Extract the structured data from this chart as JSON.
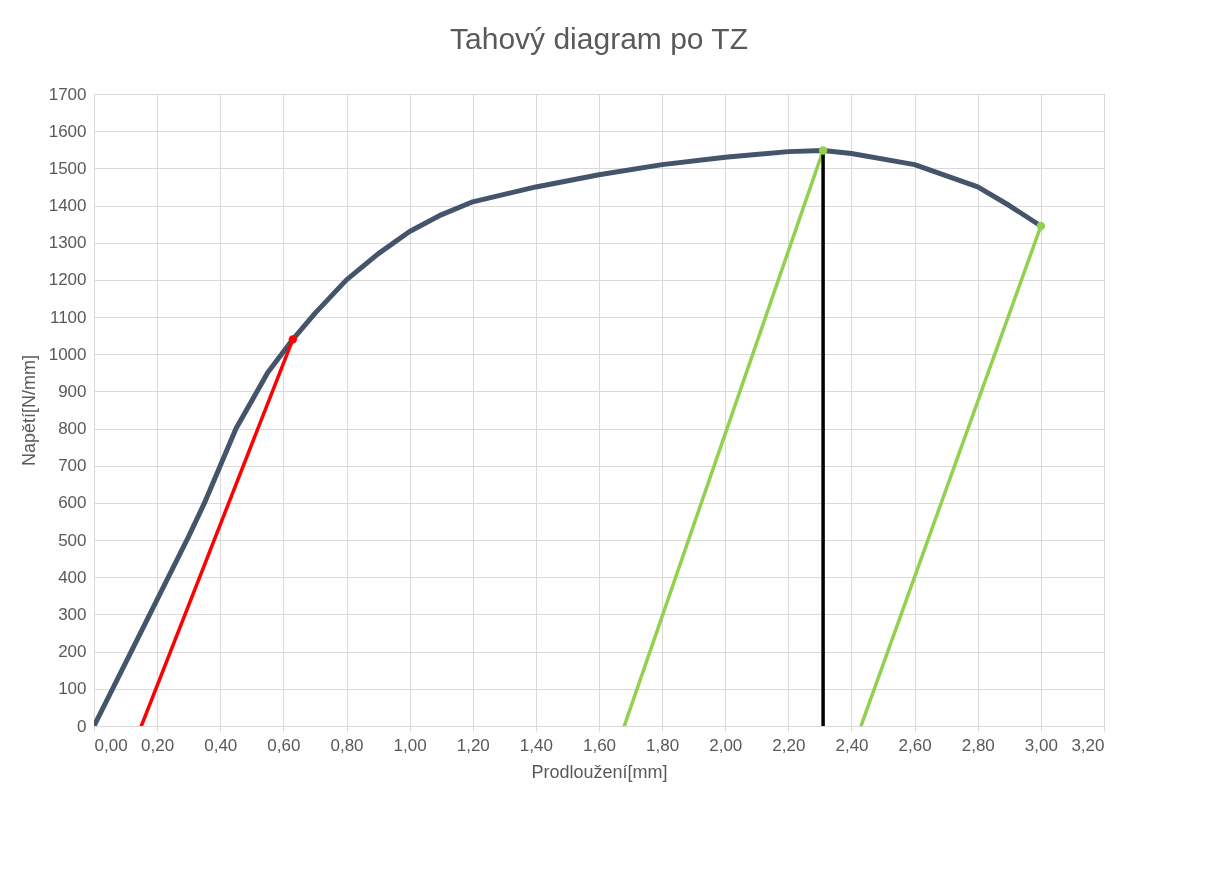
{
  "chart_data": {
    "type": "line",
    "title": "Tahový diagram po TZ",
    "xlabel": "Prodloužení[mm]",
    "ylabel": "Napětí[N/mm]",
    "xlim": [
      0,
      3.2
    ],
    "xticks": [
      {
        "value": 0,
        "label": "0,00"
      },
      {
        "value": 0.2,
        "label": "0,20"
      },
      {
        "value": 0.4,
        "label": "0,40"
      },
      {
        "value": 0.6,
        "label": "0,60"
      },
      {
        "value": 0.8,
        "label": "0,80"
      },
      {
        "value": 1.0,
        "label": "1,00"
      },
      {
        "value": 1.2,
        "label": "1,20"
      },
      {
        "value": 1.4,
        "label": "1,40"
      },
      {
        "value": 1.6,
        "label": "1,60"
      },
      {
        "value": 1.8,
        "label": "1,80"
      },
      {
        "value": 2.0,
        "label": "2,00"
      },
      {
        "value": 2.2,
        "label": "2,20"
      },
      {
        "value": 2.4,
        "label": "2,40"
      },
      {
        "value": 2.6,
        "label": "2,60"
      },
      {
        "value": 2.8,
        "label": "2,80"
      },
      {
        "value": 3.0,
        "label": "3,00"
      },
      {
        "value": 3.2,
        "label": "3,20"
      }
    ],
    "ylim": [
      0,
      1700
    ],
    "yticks": [
      0,
      100,
      200,
      300,
      400,
      500,
      600,
      700,
      800,
      900,
      1000,
      1100,
      1200,
      1300,
      1400,
      1500,
      1600,
      1700
    ],
    "grid": true,
    "line_style": "solid",
    "series": [
      {
        "color": "#44546a",
        "x": [
          0,
          0.1,
          0.2,
          0.3,
          0.35,
          0.45,
          0.55,
          0.63,
          0.7,
          0.8,
          0.9,
          1.0,
          1.1,
          1.2,
          1.4,
          1.6,
          1.8,
          2.0,
          2.2,
          2.31,
          2.4,
          2.6,
          2.8,
          2.9,
          3.0
        ],
        "values": [
          0,
          170,
          340,
          510,
          600,
          800,
          950,
          1040,
          1110,
          1200,
          1270,
          1330,
          1375,
          1410,
          1450,
          1483,
          1510,
          1530,
          1545,
          1548,
          1540,
          1510,
          1450,
          1400,
          1345
        ]
      },
      {
        "type": "line",
        "color": "#ff0000",
        "x": [
          0.15,
          0.63
        ],
        "values": [
          0,
          1040
        ]
      },
      {
        "type": "line",
        "color": "#92d050",
        "x": [
          1.68,
          2.31
        ],
        "values": [
          0,
          1548
        ]
      },
      {
        "type": "line",
        "color": "#92d050",
        "x": [
          2.43,
          3.0
        ],
        "values": [
          0,
          1345
        ]
      },
      {
        "type": "line",
        "color": "#000000",
        "x": [
          2.31,
          2.31
        ],
        "values": [
          0,
          1548
        ]
      },
      {
        "type": "scatter",
        "marker": "circle",
        "colors": [
          "#ff0000",
          "#92d050",
          "#92d050"
        ],
        "x": [
          0.63,
          2.31,
          3.0
        ],
        "values": [
          1040,
          1548,
          1345
        ]
      }
    ]
  }
}
